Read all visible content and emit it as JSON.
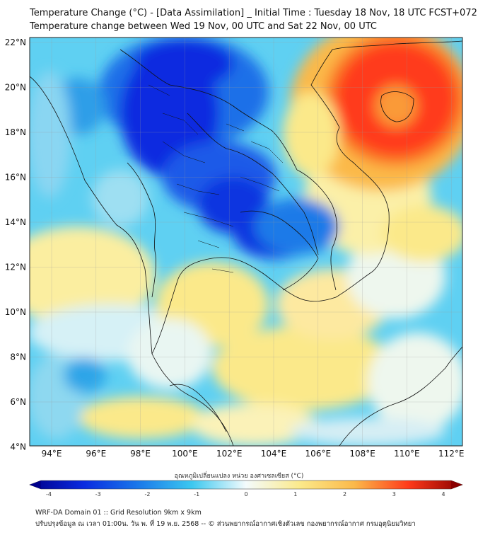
{
  "header": {
    "title_line1": "Temperature Change (°C) - [Data Assimilation] _ Initial Time : Tuesday 18 Nov, 18 UTC FCST+072",
    "title_line2": "Temperature change between Wed 19 Nov, 00 UTC and Sat 22 Nov, 00 UTC"
  },
  "map": {
    "lat_labels": [
      "22°N",
      "20°N",
      "18°N",
      "16°N",
      "14°N",
      "12°N",
      "10°N",
      "8°N",
      "6°N",
      "4°N"
    ],
    "lon_labels": [
      "94°E",
      "96°E",
      "98°E",
      "100°E",
      "102°E",
      "104°E",
      "106°E",
      "108°E",
      "110°E",
      "112°E"
    ]
  },
  "colorbar": {
    "label": "อุณหภูมิเปลี่ยนแปลง หน่วย องศาเซลเซียส (°C)",
    "ticks": [
      "-4",
      "-3",
      "-2",
      "-1",
      "0",
      "1",
      "2",
      "3",
      "4"
    ],
    "colors": {
      "deep_blue": "#00008b",
      "blue": "#0a2be0",
      "cyan": "#3cc8f0",
      "light": "#e8f7fb",
      "yellow": "#fbe98a",
      "orange": "#fa8a28",
      "red": "#ff2a1a",
      "dark_red": "#8b0000"
    }
  },
  "footer": {
    "line1": "WRF-DA Domain 01 :: Grid Resolution 9km x 9km",
    "line2": "ปรับปรุงข้อมูล ณ เวลา 01:00น. วัน พ. ที่ 19 พ.ย. 2568 -- © ส่วนพยากรณ์อากาศเชิงตัวเลข กองพยากรณ์อากาศ กรมอุตุนิยมวิทยา"
  }
}
